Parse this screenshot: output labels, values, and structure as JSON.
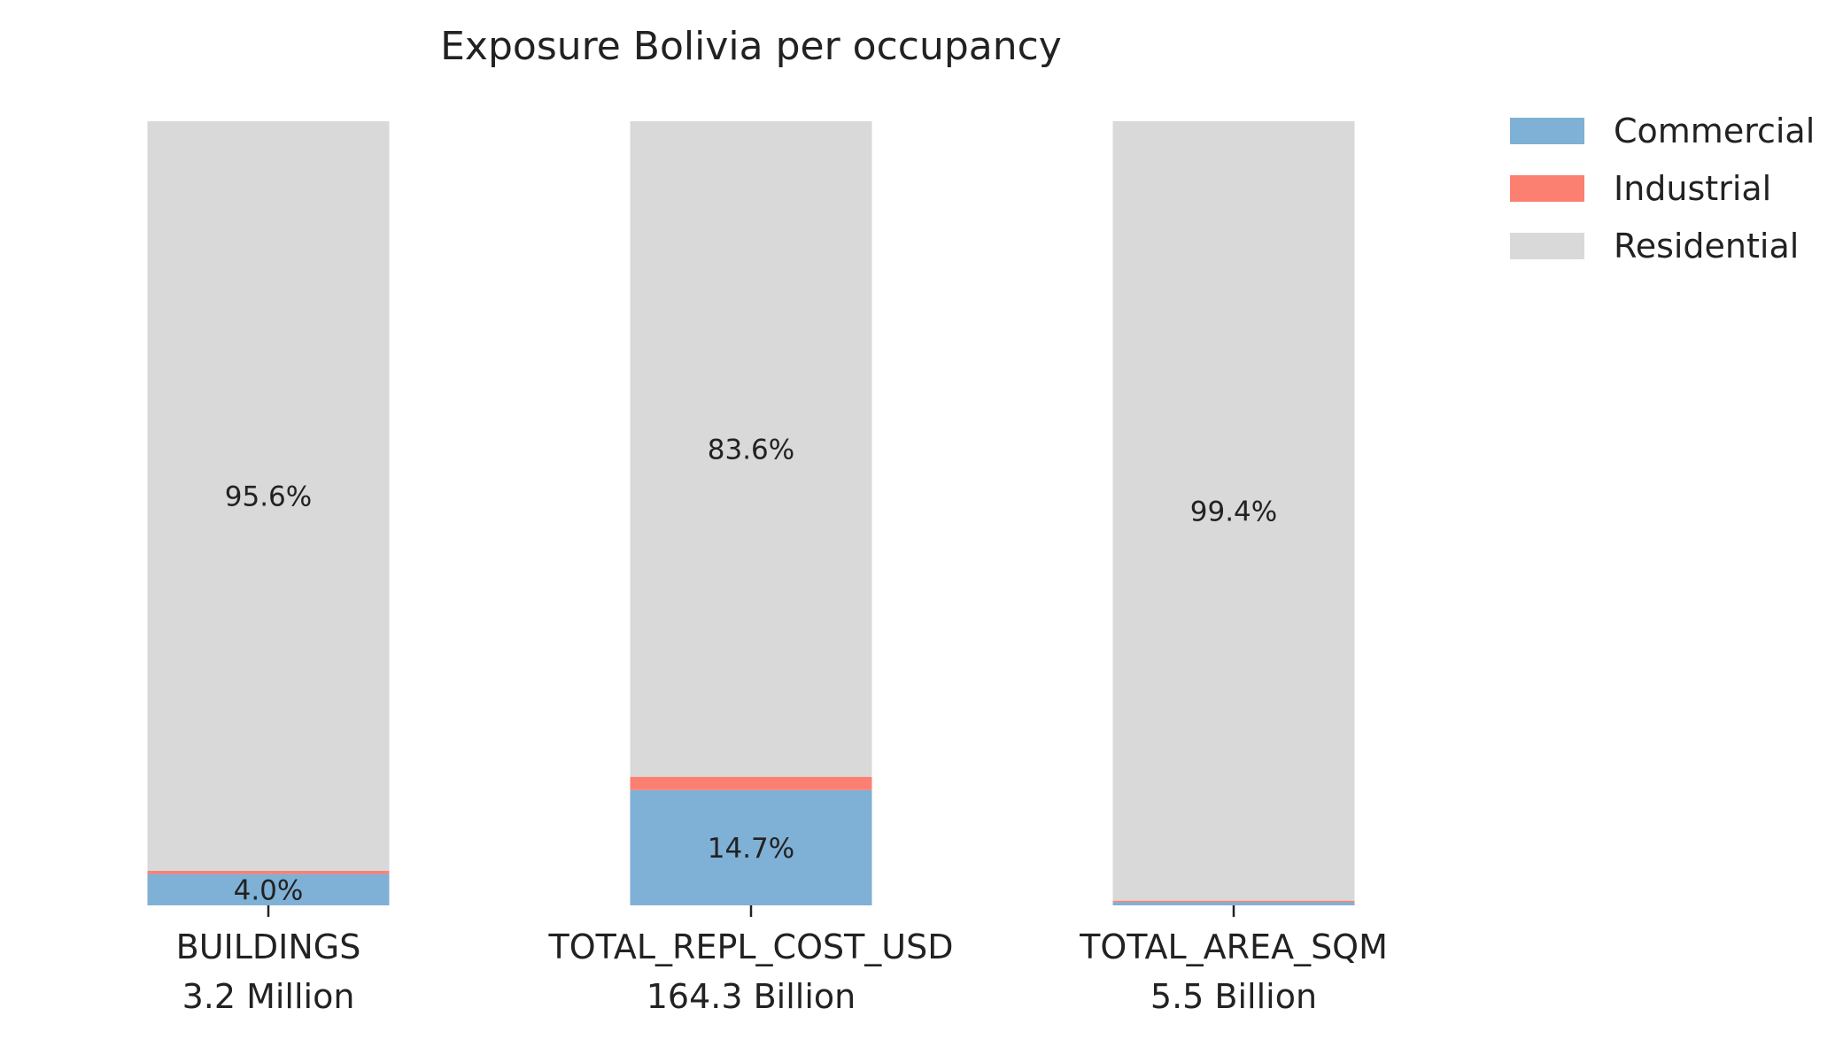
{
  "chart_data": {
    "type": "bar",
    "stacked": true,
    "percent_stacked": true,
    "title": "Exposure Bolivia per occupancy",
    "categories": [
      {
        "name": "BUILDINGS",
        "total": "3.2 Million"
      },
      {
        "name": "TOTAL_REPL_COST_USD",
        "total": "164.3 Billion"
      },
      {
        "name": "TOTAL_AREA_SQM",
        "total": "5.5 Billion"
      }
    ],
    "series": [
      {
        "name": "Commercial",
        "color": "#7fb0d5",
        "values": [
          4.0,
          14.7,
          0.4
        ]
      },
      {
        "name": "Industrial",
        "color": "#fb8072",
        "values": [
          0.4,
          1.7,
          0.2
        ]
      },
      {
        "name": "Residential",
        "color": "#d9d9d9",
        "values": [
          95.6,
          83.6,
          99.4
        ]
      }
    ],
    "data_labels": [
      [
        "4.0%",
        "",
        "95.6%"
      ],
      [
        "14.7%",
        "",
        "83.6%"
      ],
      [
        "",
        "",
        "99.4%"
      ]
    ],
    "ylim": [
      0,
      100
    ],
    "legend_position": "top-right",
    "grid": false,
    "xlabel": "",
    "ylabel": ""
  }
}
